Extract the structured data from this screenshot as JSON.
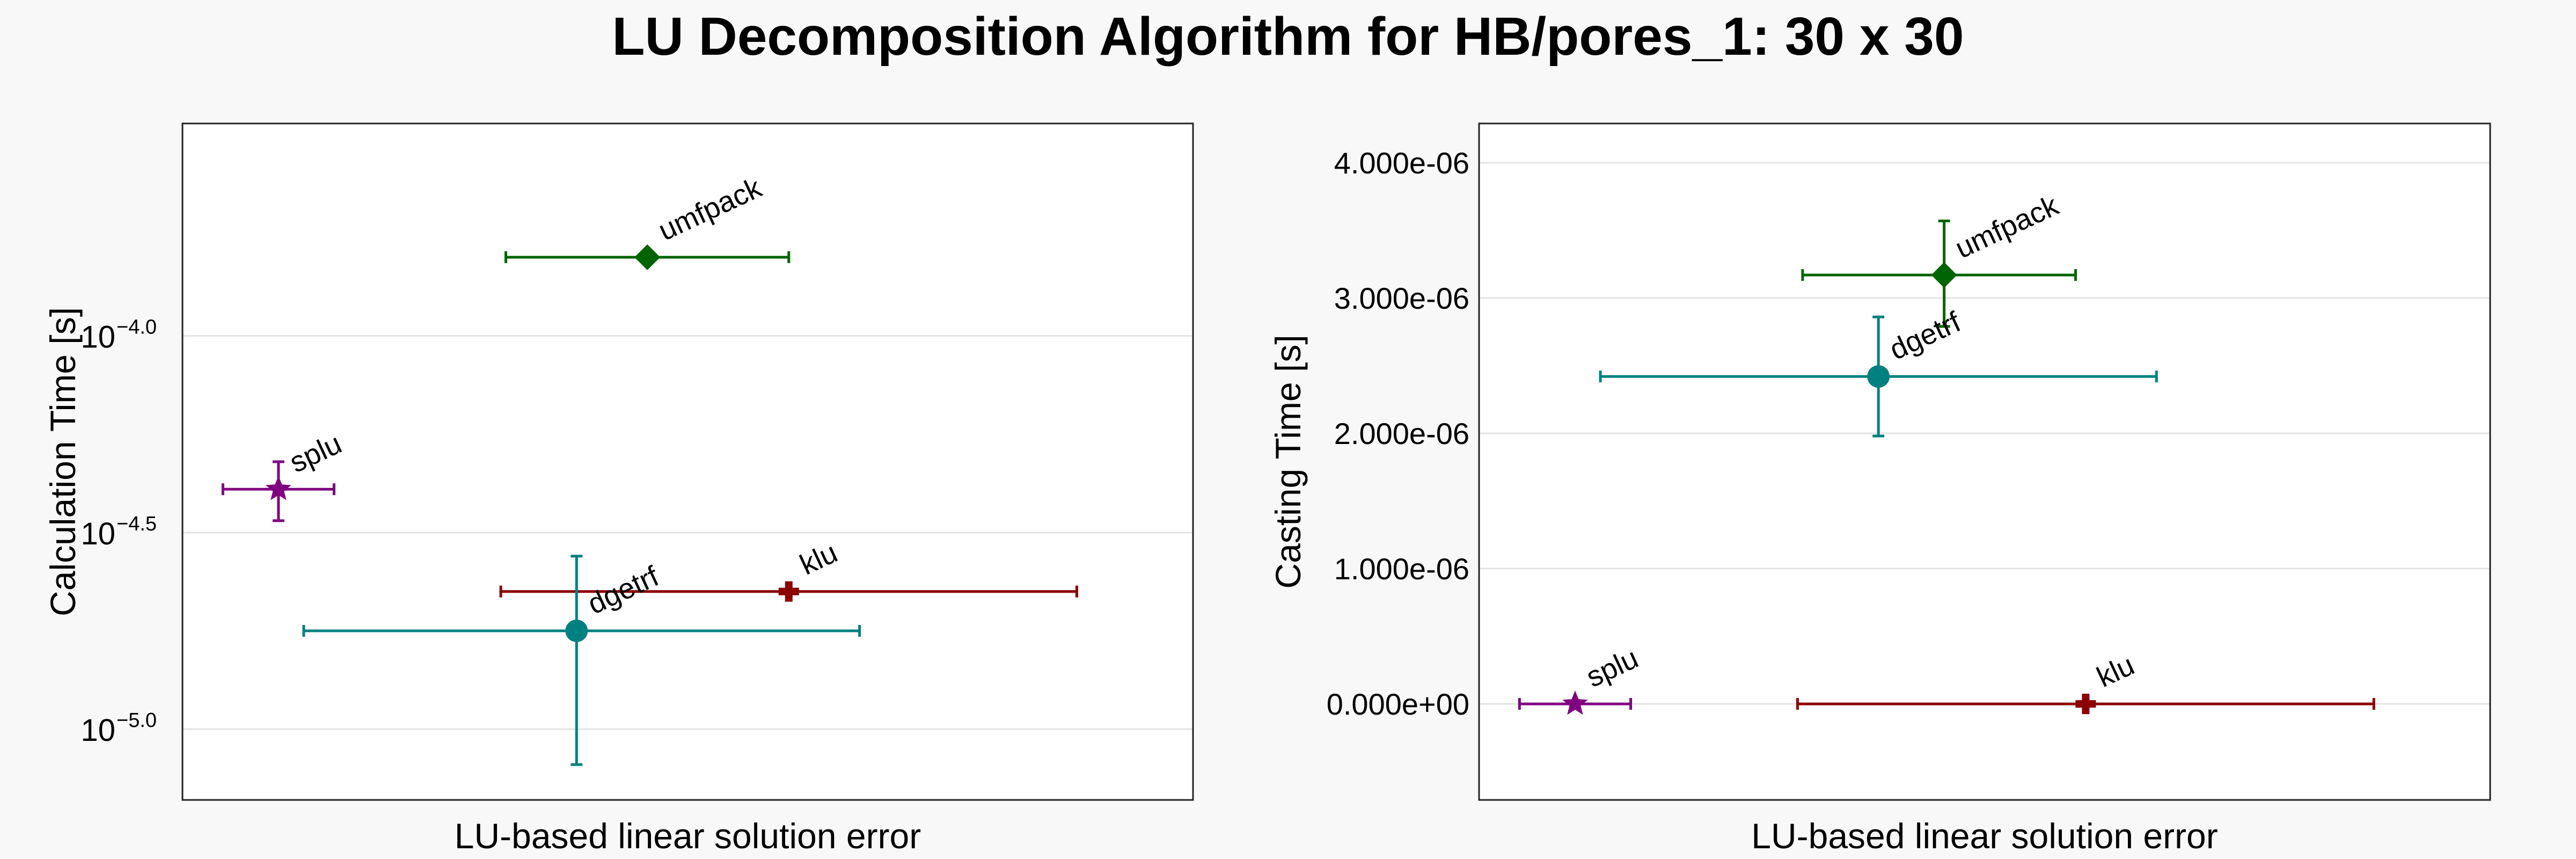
{
  "title": "LU Decomposition Algorithm for HB/pores_1: 30 x 30",
  "chart_data": [
    {
      "type": "scatter",
      "scale": "log",
      "xlabel": "LU-based linear solution error",
      "ylabel": "Calculation Time [s]",
      "ylim_log10": [
        -5.18,
        -3.46
      ],
      "yticks": [
        {
          "value_log10": -4.0,
          "base": "10",
          "exp": "−4.0"
        },
        {
          "value_log10": -4.5,
          "base": "10",
          "exp": "−4.5"
        },
        {
          "value_log10": -5.0,
          "base": "10",
          "exp": "−5.0"
        }
      ],
      "xlim": [
        0,
        100
      ],
      "series": [
        {
          "name": "umfpack",
          "marker": "diamond",
          "color": "#006400",
          "x": 46,
          "xlo": 32,
          "xhi": 60,
          "y_log10": -3.8,
          "ylo_log10": -3.8,
          "yhi_log10": -3.8
        },
        {
          "name": "splu",
          "marker": "star",
          "color": "#800080",
          "x": 9.5,
          "xlo": 4,
          "xhi": 15,
          "y_log10": -4.39,
          "ylo_log10": -4.47,
          "yhi_log10": -4.32
        },
        {
          "name": "klu",
          "marker": "cross",
          "color": "#8b0000",
          "x": 60,
          "xlo": 31.5,
          "xhi": 88.5,
          "y_log10": -4.65,
          "ylo_log10": -4.65,
          "yhi_log10": -4.65
        },
        {
          "name": "dgetrf",
          "marker": "circle",
          "color": "#008080",
          "x": 39,
          "xlo": 12,
          "xhi": 67,
          "y_log10": -4.75,
          "ylo_log10": -5.09,
          "yhi_log10": -4.56
        }
      ]
    },
    {
      "type": "scatter",
      "scale": "linear",
      "xlabel": "LU-based linear solution error",
      "ylabel": "Casting Time [s]",
      "ylim": [
        -7.1e-07,
        4.29e-06
      ],
      "yticks": [
        {
          "value": 0.0,
          "label": "0.000e+00"
        },
        {
          "value": 1e-06,
          "label": "1.000e-06"
        },
        {
          "value": 2e-06,
          "label": "2.000e-06"
        },
        {
          "value": 3e-06,
          "label": "3.000e-06"
        },
        {
          "value": 4e-06,
          "label": "4.000e-06"
        }
      ],
      "xlim": [
        0,
        100
      ],
      "series": [
        {
          "name": "umfpack",
          "marker": "diamond",
          "color": "#006400",
          "x": 46,
          "xlo": 32,
          "xhi": 59,
          "y": 3.17e-06,
          "ylo": 2.79e-06,
          "yhi": 3.57e-06
        },
        {
          "name": "dgetrf",
          "marker": "circle",
          "color": "#008080",
          "x": 39.5,
          "xlo": 12,
          "xhi": 67,
          "y": 2.42e-06,
          "ylo": 1.98e-06,
          "yhi": 2.86e-06
        },
        {
          "name": "splu",
          "marker": "star",
          "color": "#800080",
          "x": 9.5,
          "xlo": 4,
          "xhi": 15,
          "y": 0.0,
          "ylo": 0.0,
          "yhi": 0.0
        },
        {
          "name": "klu",
          "marker": "cross",
          "color": "#8b0000",
          "x": 60,
          "xlo": 31.5,
          "xhi": 88.5,
          "y": 0.0,
          "ylo": 0.0,
          "yhi": 0.0
        }
      ]
    }
  ]
}
